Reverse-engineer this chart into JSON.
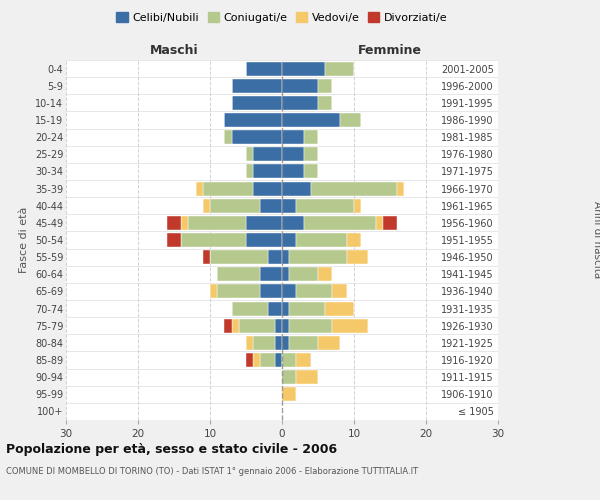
{
  "age_groups": [
    "100+",
    "95-99",
    "90-94",
    "85-89",
    "80-84",
    "75-79",
    "70-74",
    "65-69",
    "60-64",
    "55-59",
    "50-54",
    "45-49",
    "40-44",
    "35-39",
    "30-34",
    "25-29",
    "20-24",
    "15-19",
    "10-14",
    "5-9",
    "0-4"
  ],
  "birth_years": [
    "≤ 1905",
    "1906-1910",
    "1911-1915",
    "1916-1920",
    "1921-1925",
    "1926-1930",
    "1931-1935",
    "1936-1940",
    "1941-1945",
    "1946-1950",
    "1951-1955",
    "1956-1960",
    "1961-1965",
    "1966-1970",
    "1971-1975",
    "1976-1980",
    "1981-1985",
    "1986-1990",
    "1991-1995",
    "1996-2000",
    "2001-2005"
  ],
  "males": {
    "celibi": [
      0,
      0,
      0,
      1,
      1,
      1,
      2,
      3,
      3,
      2,
      5,
      5,
      3,
      4,
      4,
      4,
      7,
      8,
      7,
      7,
      5
    ],
    "coniugati": [
      0,
      0,
      0,
      2,
      3,
      5,
      5,
      6,
      6,
      8,
      9,
      8,
      7,
      7,
      1,
      1,
      1,
      0,
      0,
      0,
      0
    ],
    "vedovi": [
      0,
      0,
      0,
      1,
      1,
      1,
      0,
      1,
      0,
      0,
      0,
      1,
      1,
      1,
      0,
      0,
      0,
      0,
      0,
      0,
      0
    ],
    "divorziati": [
      0,
      0,
      0,
      1,
      0,
      1,
      0,
      0,
      0,
      1,
      2,
      2,
      0,
      0,
      0,
      0,
      0,
      0,
      0,
      0,
      0
    ]
  },
  "females": {
    "nubili": [
      0,
      0,
      0,
      0,
      1,
      1,
      1,
      2,
      1,
      1,
      2,
      3,
      2,
      4,
      3,
      3,
      3,
      8,
      5,
      5,
      6
    ],
    "coniugate": [
      0,
      0,
      2,
      2,
      4,
      6,
      5,
      5,
      4,
      8,
      7,
      10,
      8,
      12,
      2,
      2,
      2,
      3,
      2,
      2,
      4
    ],
    "vedove": [
      0,
      2,
      3,
      2,
      3,
      5,
      4,
      2,
      2,
      3,
      2,
      1,
      1,
      1,
      0,
      0,
      0,
      0,
      0,
      0,
      0
    ],
    "divorziate": [
      0,
      0,
      0,
      0,
      0,
      0,
      0,
      0,
      0,
      0,
      0,
      2,
      0,
      0,
      0,
      0,
      0,
      0,
      0,
      0,
      0
    ]
  },
  "colors": {
    "celibi_nubili": "#3A6EA5",
    "coniugati": "#B5C98E",
    "vedovi": "#F5C96A",
    "divorziati": "#C0392B"
  },
  "xlim": 30,
  "title": "Popolazione per età, sesso e stato civile - 2006",
  "subtitle": "COMUNE DI MOMBELLO DI TORINO (TO) - Dati ISTAT 1° gennaio 2006 - Elaborazione TUTTITALIA.IT",
  "ylabel_left": "Fasce di età",
  "ylabel_right": "Anni di nascita",
  "bg_color": "#f0f0f0",
  "plot_bg": "#ffffff",
  "grid_color": "#cccccc"
}
